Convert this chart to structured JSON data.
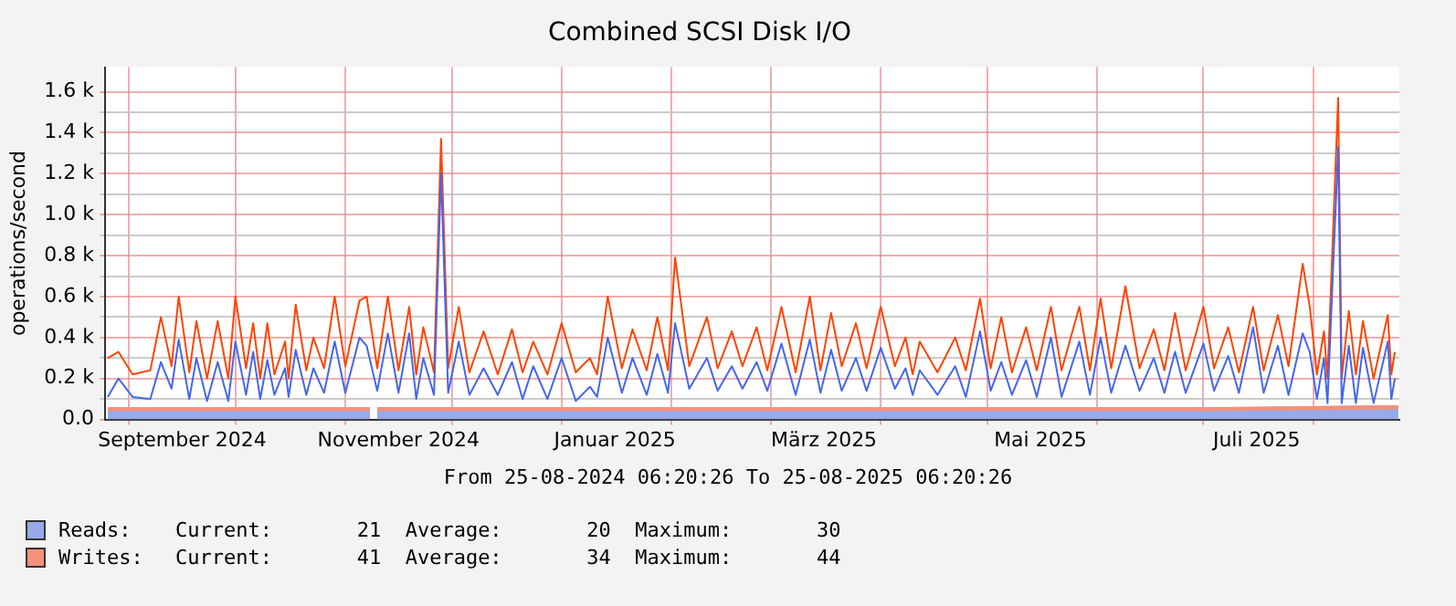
{
  "chart_data": {
    "type": "line",
    "title": "Combined SCSI Disk I/O",
    "ylabel": "operations/second",
    "xlim": [
      "2024-08-25T06:20",
      "2025-08-25T06:20"
    ],
    "xticks": [
      {
        "value": "2024-09-01",
        "label": null
      },
      {
        "value": "2024-09-16",
        "label": "September 2024"
      },
      {
        "value": "2024-10-01",
        "label": null
      },
      {
        "value": "2024-11-01",
        "label": null
      },
      {
        "value": "2024-11-16",
        "label": "November 2024"
      },
      {
        "value": "2024-12-01",
        "label": null
      },
      {
        "value": "2025-01-01",
        "label": null
      },
      {
        "value": "2025-01-16",
        "label": "Januar 2025"
      },
      {
        "value": "2025-02-01",
        "label": null
      },
      {
        "value": "2025-03-01",
        "label": null
      },
      {
        "value": "2025-03-16",
        "label": "März 2025"
      },
      {
        "value": "2025-04-01",
        "label": null
      },
      {
        "value": "2025-05-01",
        "label": null
      },
      {
        "value": "2025-05-16",
        "label": "Mai 2025"
      },
      {
        "value": "2025-06-01",
        "label": null
      },
      {
        "value": "2025-07-01",
        "label": null
      },
      {
        "value": "2025-07-16",
        "label": "Juli 2025"
      },
      {
        "value": "2025-08-01",
        "label": null
      }
    ],
    "ylim": [
      0,
      1720
    ],
    "yticks": [
      {
        "value": 0,
        "label": "0.0"
      },
      {
        "value": 100,
        "label": null
      },
      {
        "value": 200,
        "label": "0.2 k"
      },
      {
        "value": 300,
        "label": null
      },
      {
        "value": 400,
        "label": "0.4 k"
      },
      {
        "value": 500,
        "label": null
      },
      {
        "value": 600,
        "label": "0.6 k"
      },
      {
        "value": 700,
        "label": null
      },
      {
        "value": 800,
        "label": "0.8 k"
      },
      {
        "value": 900,
        "label": null
      },
      {
        "value": 1000,
        "label": "1.0 k"
      },
      {
        "value": 1100,
        "label": null
      },
      {
        "value": 1200,
        "label": "1.2 k"
      },
      {
        "value": 1300,
        "label": null
      },
      {
        "value": 1400,
        "label": "1.4 k"
      },
      {
        "value": 1500,
        "label": null
      },
      {
        "value": 1600,
        "label": "1.6 k"
      }
    ],
    "grid": true,
    "legend": "bottom",
    "stacked": true,
    "annotations": [
      "From 25-08-2024 06:20:26 To 25-08-2025 06:20:26",
      "Current:       21  Average:       20  Maximum:       30",
      "Current:       41  Average:       34  Maximum:       44"
    ],
    "x": [
      "2024-08-26",
      "2024-08-29",
      "2024-09-02",
      "2024-09-07",
      "2024-09-10",
      "2024-09-13",
      "2024-09-15",
      "2024-09-18",
      "2024-09-20",
      "2024-09-23",
      "2024-09-26",
      "2024-09-29",
      "2024-10-01",
      "2024-10-04",
      "2024-10-06",
      "2024-10-08",
      "2024-10-10",
      "2024-10-12",
      "2024-10-15",
      "2024-10-16",
      "2024-10-18",
      "2024-10-21",
      "2024-10-23",
      "2024-10-26",
      "2024-10-29",
      "2024-11-01",
      "2024-11-05",
      "2024-11-07",
      "2024-11-10",
      "2024-11-13",
      "2024-11-16",
      "2024-11-19",
      "2024-11-21",
      "2024-11-23",
      "2024-11-26",
      "2024-11-28",
      "2024-11-30",
      "2024-12-03",
      "2024-12-06",
      "2024-12-10",
      "2024-12-14",
      "2024-12-18",
      "2024-12-21",
      "2024-12-24",
      "2024-12-28",
      "2025-01-01",
      "2025-01-05",
      "2025-01-09",
      "2025-01-11",
      "2025-01-14",
      "2025-01-18",
      "2025-01-21",
      "2025-01-25",
      "2025-01-28",
      "2025-01-31",
      "2025-02-02",
      "2025-02-06",
      "2025-02-11",
      "2025-02-14",
      "2025-02-18",
      "2025-02-21",
      "2025-02-25",
      "2025-02-28",
      "2025-03-04",
      "2025-03-08",
      "2025-03-12",
      "2025-03-15",
      "2025-03-18",
      "2025-03-21",
      "2025-03-25",
      "2025-03-28",
      "2025-04-01",
      "2025-04-05",
      "2025-04-08",
      "2025-04-10",
      "2025-04-12",
      "2025-04-17",
      "2025-04-22",
      "2025-04-25",
      "2025-04-29",
      "2025-05-02",
      "2025-05-05",
      "2025-05-08",
      "2025-05-12",
      "2025-05-15",
      "2025-05-19",
      "2025-05-22",
      "2025-05-27",
      "2025-05-30",
      "2025-06-02",
      "2025-06-05",
      "2025-06-09",
      "2025-06-13",
      "2025-06-17",
      "2025-06-20",
      "2025-06-23",
      "2025-06-26",
      "2025-07-01",
      "2025-07-04",
      "2025-07-08",
      "2025-07-11",
      "2025-07-15",
      "2025-07-18",
      "2025-07-22",
      "2025-07-25",
      "2025-07-29",
      "2025-07-31",
      "2025-08-02",
      "2025-08-04",
      "2025-08-05",
      "2025-08-08",
      "2025-08-09",
      "2025-08-11",
      "2025-08-13",
      "2025-08-15",
      "2025-08-18",
      "2025-08-22",
      "2025-08-23",
      "2025-08-24"
    ],
    "series": [
      {
        "name": "Reads:",
        "type": "area",
        "color": "#97a9e8",
        "x": [
          "2024-08-26",
          "2024-10-01",
          "2024-11-08",
          "2024-11-09",
          "2024-11-10",
          "2025-01-01",
          "2025-04-01",
          "2025-07-01",
          "2025-08-25"
        ],
        "values": [
          20,
          20,
          20,
          null,
          20,
          20,
          20,
          20,
          20
        ]
      },
      {
        "name": "Writes:",
        "type": "area",
        "color": "#f4917a",
        "x": [
          "2024-08-26",
          "2024-10-01",
          "2024-11-08",
          "2024-11-09",
          "2024-11-10",
          "2025-01-01",
          "2025-04-01",
          "2025-07-01",
          "2025-08-25"
        ],
        "values": [
          40,
          40,
          40,
          null,
          40,
          40,
          40,
          40,
          50
        ]
      },
      {
        "type": "line",
        "color": "#ff4400",
        "values": [
          300,
          330,
          220,
          240,
          500,
          260,
          600,
          230,
          480,
          200,
          480,
          200,
          600,
          250,
          470,
          200,
          470,
          220,
          380,
          200,
          560,
          240,
          400,
          250,
          600,
          260,
          580,
          600,
          250,
          600,
          240,
          550,
          220,
          450,
          230,
          1370,
          250,
          550,
          230,
          430,
          220,
          440,
          230,
          380,
          220,
          470,
          230,
          300,
          220,
          600,
          250,
          440,
          240,
          500,
          240,
          790,
          260,
          500,
          250,
          430,
          260,
          450,
          240,
          550,
          230,
          600,
          240,
          520,
          260,
          470,
          250,
          550,
          260,
          400,
          220,
          380,
          230,
          400,
          240,
          590,
          250,
          500,
          230,
          450,
          240,
          550,
          240,
          550,
          240,
          590,
          250,
          650,
          250,
          440,
          240,
          520,
          240,
          550,
          250,
          450,
          230,
          550,
          240,
          510,
          260,
          760,
          550,
          220,
          430,
          200,
          1570,
          200,
          530,
          220,
          480,
          200,
          510,
          220,
          330
        ]
      },
      {
        "type": "line",
        "color": "#4466ee",
        "values": [
          110,
          200,
          110,
          100,
          280,
          150,
          390,
          100,
          300,
          90,
          280,
          90,
          380,
          120,
          330,
          100,
          290,
          120,
          250,
          110,
          340,
          120,
          250,
          130,
          380,
          130,
          400,
          360,
          140,
          420,
          130,
          420,
          100,
          300,
          120,
          1200,
          130,
          380,
          120,
          250,
          120,
          280,
          100,
          260,
          100,
          300,
          90,
          160,
          110,
          400,
          130,
          300,
          120,
          320,
          130,
          470,
          150,
          300,
          140,
          260,
          150,
          280,
          140,
          370,
          120,
          390,
          130,
          340,
          140,
          300,
          140,
          350,
          150,
          250,
          120,
          240,
          120,
          260,
          110,
          430,
          140,
          280,
          120,
          290,
          110,
          400,
          110,
          380,
          120,
          400,
          130,
          360,
          140,
          300,
          130,
          330,
          130,
          370,
          140,
          310,
          130,
          450,
          130,
          360,
          120,
          420,
          330,
          100,
          300,
          80,
          1330,
          80,
          360,
          80,
          350,
          80,
          380,
          100,
          200
        ]
      }
    ]
  }
}
